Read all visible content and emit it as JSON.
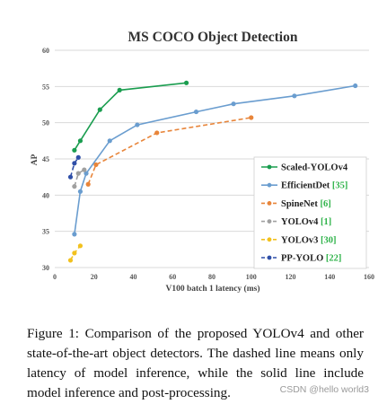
{
  "chart_data": {
    "type": "line",
    "title": "MS COCO Object Detection",
    "xlabel": "V100 batch 1 latency (ms)",
    "ylabel": "AP",
    "xlim": [
      0,
      160
    ],
    "ylim": [
      30,
      60
    ],
    "xticks": [
      0,
      20,
      40,
      60,
      80,
      100,
      120,
      140,
      160
    ],
    "yticks": [
      30,
      35,
      40,
      45,
      50,
      55,
      60
    ],
    "grid": true,
    "legend_position": "bottom-right",
    "series": [
      {
        "name": "Scaled-YOLOv4",
        "ref": "",
        "color": "#1a9d4f",
        "dashed": false,
        "x": [
          10,
          13,
          23,
          33,
          67
        ],
        "y": [
          46.2,
          47.5,
          51.8,
          54.5,
          55.5
        ]
      },
      {
        "name": "EfficientDet",
        "ref": "[35]",
        "color": "#6a9dcf",
        "dashed": false,
        "x": [
          10,
          13,
          16,
          28,
          42,
          72,
          91,
          122,
          153
        ],
        "y": [
          34.6,
          40.5,
          43.0,
          47.5,
          49.7,
          51.5,
          52.6,
          53.7,
          55.1
        ]
      },
      {
        "name": "SpineNet",
        "ref": "[6]",
        "color": "#e8853a",
        "dashed": true,
        "x": [
          17,
          21,
          52,
          100
        ],
        "y": [
          41.5,
          44.2,
          48.6,
          50.7
        ]
      },
      {
        "name": "YOLOv4",
        "ref": "[1]",
        "color": "#a0a0a0",
        "dashed": true,
        "x": [
          10,
          12,
          15
        ],
        "y": [
          41.2,
          43.0,
          43.5
        ]
      },
      {
        "name": "YOLOv3",
        "ref": "[30]",
        "color": "#f2c11e",
        "dashed": true,
        "x": [
          8,
          10,
          13
        ],
        "y": [
          31.0,
          32.0,
          33.0
        ]
      },
      {
        "name": "PP-YOLO",
        "ref": "[22]",
        "color": "#2f4fa8",
        "dashed": true,
        "x": [
          8,
          10,
          12
        ],
        "y": [
          42.5,
          44.4,
          45.2
        ]
      }
    ]
  },
  "caption": "Figure 1: Comparison of the proposed YOLOv4 and other state-of-the-art object detectors. The dashed line means only latency of model inference, while the solid line include model inference and post-processing.",
  "watermark": "CSDN @hello world3"
}
